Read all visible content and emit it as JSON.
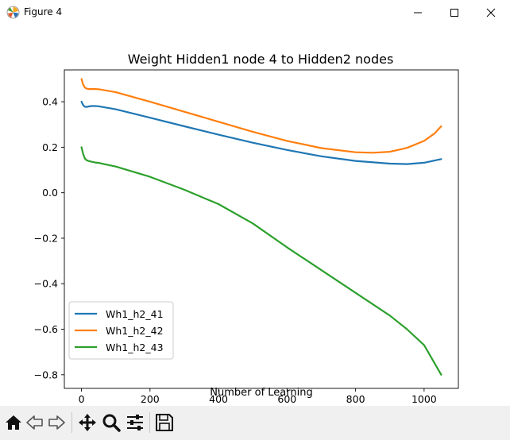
{
  "window": {
    "title": "Figure 4",
    "icons": [
      "matplotlib-logo-icon",
      "minimize-icon",
      "maximize-icon",
      "close-icon"
    ]
  },
  "toolbar": {
    "buttons": [
      "home-icon",
      "back-icon",
      "forward-icon",
      "pan-icon",
      "zoom-icon",
      "configure-subplots-icon",
      "save-icon"
    ]
  },
  "chart_data": {
    "type": "line",
    "title": "Weight Hidden1 node 4 to Hidden2 nodes",
    "xlabel": "Number of Learning",
    "ylabel": "",
    "xlim": [
      -50,
      1100
    ],
    "ylim": [
      -0.86,
      0.54
    ],
    "xticks": [
      0,
      200,
      400,
      600,
      800,
      1000
    ],
    "xtick_labels": [
      "0",
      "200",
      "400",
      "600",
      "800",
      "1000"
    ],
    "yticks": [
      0.4,
      0.2,
      0.0,
      -0.2,
      -0.4,
      -0.6,
      -0.8
    ],
    "ytick_labels": [
      "0.4",
      "0.2",
      "0.0",
      "−0.2",
      "−0.4",
      "−0.6",
      "−0.8"
    ],
    "grid": false,
    "legend_position": "lower-left",
    "series": [
      {
        "name": "Wh1_h2_41",
        "color": "#1f77b4",
        "x": [
          0,
          5,
          10,
          15,
          20,
          30,
          40,
          50,
          100,
          200,
          300,
          400,
          500,
          600,
          700,
          800,
          900,
          950,
          1000,
          1050
        ],
        "y": [
          0.4,
          0.385,
          0.378,
          0.377,
          0.379,
          0.381,
          0.381,
          0.38,
          0.367,
          0.33,
          0.292,
          0.255,
          0.22,
          0.188,
          0.16,
          0.14,
          0.128,
          0.126,
          0.132,
          0.148
        ]
      },
      {
        "name": "Wh1_h2_42",
        "color": "#ff7f0e",
        "x": [
          0,
          5,
          10,
          15,
          20,
          30,
          40,
          50,
          100,
          200,
          300,
          400,
          500,
          600,
          700,
          800,
          850,
          900,
          950,
          1000,
          1030,
          1050
        ],
        "y": [
          0.5,
          0.475,
          0.462,
          0.458,
          0.456,
          0.456,
          0.456,
          0.455,
          0.442,
          0.4,
          0.356,
          0.312,
          0.268,
          0.228,
          0.196,
          0.178,
          0.176,
          0.18,
          0.197,
          0.228,
          0.26,
          0.292
        ]
      },
      {
        "name": "Wh1_h2_43",
        "color": "#2ca02c",
        "x": [
          0,
          5,
          10,
          15,
          20,
          30,
          40,
          50,
          100,
          200,
          300,
          400,
          500,
          600,
          700,
          800,
          900,
          950,
          1000,
          1050
        ],
        "y": [
          0.2,
          0.17,
          0.15,
          0.143,
          0.14,
          0.136,
          0.133,
          0.131,
          0.115,
          0.07,
          0.013,
          -0.05,
          -0.135,
          -0.24,
          -0.34,
          -0.44,
          -0.54,
          -0.6,
          -0.67,
          -0.8
        ]
      }
    ]
  }
}
